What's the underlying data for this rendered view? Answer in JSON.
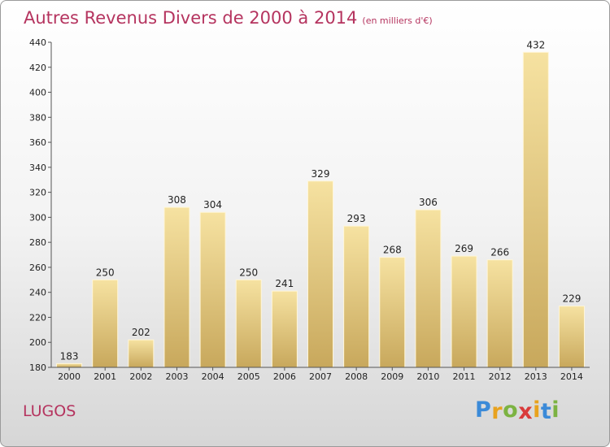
{
  "header": {
    "title": "Autres Revenus Divers de 2000 à 2014",
    "unit": "(en milliers d'€)"
  },
  "footer": {
    "place": "LUGOS",
    "logo_letters": [
      {
        "char": "P",
        "color": "#3b8ad8"
      },
      {
        "char": "r",
        "color": "#e8a21e"
      },
      {
        "char": "o",
        "color": "#7cb342"
      },
      {
        "char": "x",
        "color": "#d93a3a"
      },
      {
        "char": "i",
        "color": "#e8a21e"
      },
      {
        "char": "t",
        "color": "#3b8ad8"
      },
      {
        "char": "i",
        "color": "#7cb342"
      }
    ]
  },
  "chart_data": {
    "type": "bar",
    "title": "Autres Revenus Divers de 2000 à 2014",
    "subtitle": "(en milliers d'€)",
    "categories": [
      "2000",
      "2001",
      "2002",
      "2003",
      "2004",
      "2005",
      "2006",
      "2007",
      "2008",
      "2009",
      "2010",
      "2011",
      "2012",
      "2013",
      "2014"
    ],
    "values": [
      183,
      250,
      202,
      308,
      304,
      250,
      241,
      329,
      293,
      268,
      306,
      269,
      266,
      432,
      229
    ],
    "ylim": [
      180,
      440
    ],
    "yticks": [
      180,
      200,
      220,
      240,
      260,
      280,
      300,
      320,
      340,
      360,
      380,
      400,
      420,
      440
    ],
    "grid": false,
    "bar_color_light": "#f6e2a1",
    "bar_color_dark": "#c8a85c",
    "text_color": "#b5345f"
  }
}
